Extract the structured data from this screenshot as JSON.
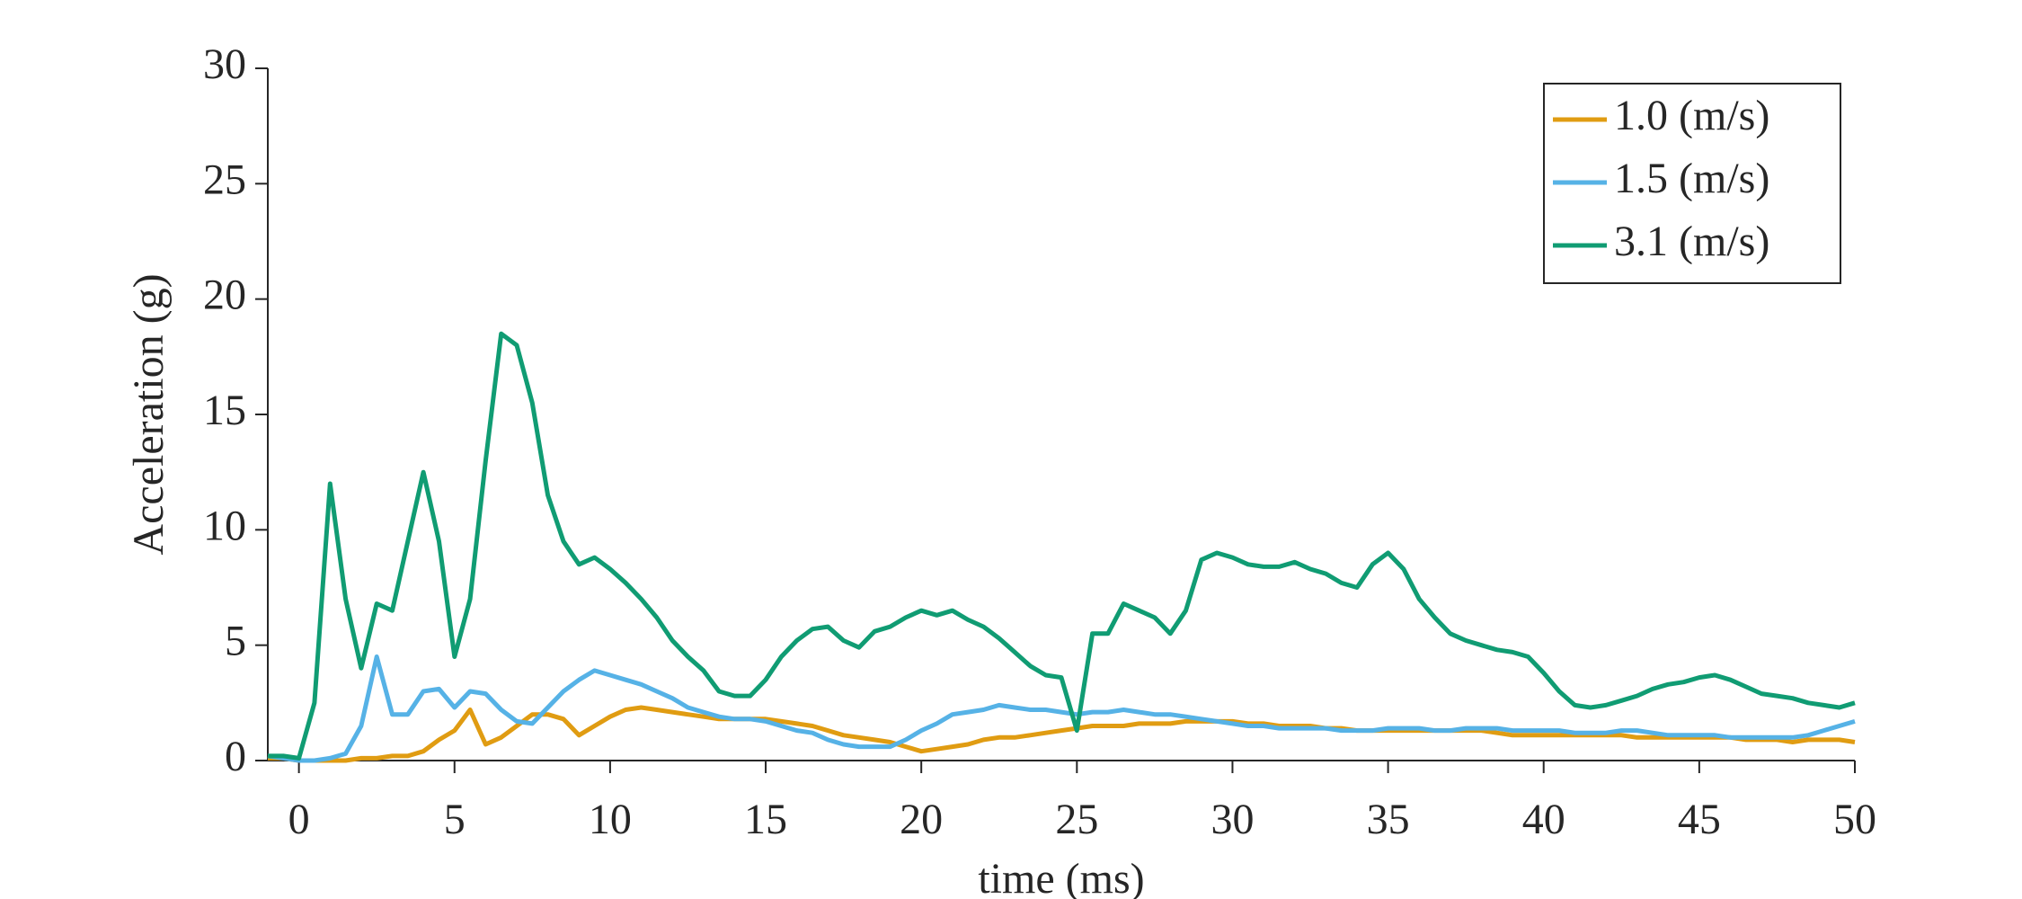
{
  "chart_data": {
    "type": "line",
    "xlabel": "time (ms)",
    "ylabel": "Acceleration (g)",
    "xlim": [
      -1,
      50
    ],
    "ylim": [
      0,
      30
    ],
    "xticks": [
      0,
      5,
      10,
      15,
      20,
      25,
      30,
      35,
      40,
      45,
      50
    ],
    "yticks": [
      0,
      5,
      10,
      15,
      20,
      25,
      30
    ],
    "legend": "northeast",
    "x": [
      -1,
      -0.5,
      0,
      0.5,
      1,
      1.5,
      2,
      2.5,
      3,
      3.5,
      4,
      4.5,
      5,
      5.5,
      6,
      6.5,
      7,
      7.5,
      8,
      8.5,
      9,
      9.5,
      10,
      10.5,
      11,
      11.5,
      12,
      12.5,
      13,
      13.5,
      14,
      14.5,
      15,
      15.5,
      16,
      16.5,
      17,
      17.5,
      18,
      18.5,
      19,
      19.5,
      20,
      20.5,
      21,
      21.5,
      22,
      22.5,
      23,
      23.5,
      24,
      24.5,
      25,
      25.5,
      26,
      26.5,
      27,
      27.5,
      28,
      28.5,
      29,
      29.5,
      30,
      30.5,
      31,
      31.5,
      32,
      32.5,
      33,
      33.5,
      34,
      34.5,
      35,
      35.5,
      36,
      36.5,
      37,
      37.5,
      38,
      38.5,
      39,
      39.5,
      40,
      40.5,
      41,
      41.5,
      42,
      42.5,
      43,
      43.5,
      44,
      44.5,
      45,
      45.5,
      46,
      46.5,
      47,
      47.5,
      48,
      48.5,
      49,
      49.5,
      50
    ],
    "series": [
      {
        "name": "1.0 (m/s)",
        "color": "#e09c12",
        "values": [
          0.1,
          0.1,
          0,
          0,
          0,
          0,
          0.1,
          0.1,
          0.2,
          0.2,
          0.4,
          0.9,
          1.3,
          2.2,
          0.7,
          1,
          1.5,
          2,
          2,
          1.8,
          1.1,
          1.5,
          1.9,
          2.2,
          2.3,
          2.2,
          2.1,
          2,
          1.9,
          1.8,
          1.8,
          1.8,
          1.8,
          1.7,
          1.6,
          1.5,
          1.3,
          1.1,
          1,
          0.9,
          0.8,
          0.6,
          0.4,
          0.5,
          0.6,
          0.7,
          0.9,
          1,
          1,
          1.1,
          1.2,
          1.3,
          1.4,
          1.5,
          1.5,
          1.5,
          1.6,
          1.6,
          1.6,
          1.7,
          1.7,
          1.7,
          1.7,
          1.6,
          1.6,
          1.5,
          1.5,
          1.5,
          1.4,
          1.4,
          1.3,
          1.3,
          1.3,
          1.3,
          1.3,
          1.3,
          1.3,
          1.3,
          1.3,
          1.2,
          1.1,
          1.1,
          1.1,
          1.1,
          1.1,
          1.1,
          1.1,
          1.1,
          1,
          1,
          1,
          1,
          1,
          1,
          1,
          0.9,
          0.9,
          0.9,
          0.8,
          0.9,
          0.9,
          0.9,
          0.8
        ]
      },
      {
        "name": "1.5 (m/s)",
        "color": "#56b2e6",
        "values": [
          0.2,
          0.1,
          0,
          0,
          0.1,
          0.3,
          1.5,
          4.5,
          2,
          2,
          3,
          3.1,
          2.3,
          3,
          2.9,
          2.2,
          1.7,
          1.6,
          2.3,
          3,
          3.5,
          3.9,
          3.7,
          3.5,
          3.3,
          3,
          2.7,
          2.3,
          2.1,
          1.9,
          1.8,
          1.8,
          1.7,
          1.5,
          1.3,
          1.2,
          0.9,
          0.7,
          0.6,
          0.6,
          0.6,
          0.9,
          1.3,
          1.6,
          2,
          2.1,
          2.2,
          2.4,
          2.3,
          2.2,
          2.2,
          2.1,
          2,
          2.1,
          2.1,
          2.2,
          2.1,
          2,
          2,
          1.9,
          1.8,
          1.7,
          1.6,
          1.5,
          1.5,
          1.4,
          1.4,
          1.4,
          1.4,
          1.3,
          1.3,
          1.3,
          1.4,
          1.4,
          1.4,
          1.3,
          1.3,
          1.4,
          1.4,
          1.4,
          1.3,
          1.3,
          1.3,
          1.3,
          1.2,
          1.2,
          1.2,
          1.3,
          1.3,
          1.2,
          1.1,
          1.1,
          1.1,
          1.1,
          1,
          1,
          1,
          1,
          1,
          1.1,
          1.3,
          1.5,
          1.7
        ]
      },
      {
        "name": "3.1 (m/s)",
        "color": "#109c73",
        "values": [
          0.2,
          0.2,
          0.1,
          2.5,
          12,
          7,
          4,
          6.8,
          6.5,
          9.5,
          12.5,
          9.5,
          4.5,
          7,
          13,
          18.5,
          18,
          15.5,
          11.5,
          9.5,
          8.5,
          8.8,
          8.3,
          7.7,
          7,
          6.2,
          5.2,
          4.5,
          3.9,
          3,
          2.8,
          2.8,
          3.5,
          4.5,
          5.2,
          5.7,
          5.8,
          5.2,
          4.9,
          5.6,
          5.8,
          6.2,
          6.5,
          6.3,
          6.5,
          6.1,
          5.8,
          5.3,
          4.7,
          4.1,
          3.7,
          3.6,
          1.3,
          5.5,
          5.5,
          6.8,
          6.5,
          6.2,
          5.5,
          6.5,
          8.7,
          9,
          8.8,
          8.5,
          8.4,
          8.4,
          8.6,
          8.3,
          8.1,
          7.7,
          7.5,
          8.5,
          9,
          8.3,
          7,
          6.2,
          5.5,
          5.2,
          5,
          4.8,
          4.7,
          4.5,
          3.8,
          3,
          2.4,
          2.3,
          2.4,
          2.6,
          2.8,
          3.1,
          3.3,
          3.4,
          3.6,
          3.7,
          3.5,
          3.2,
          2.9,
          2.8,
          2.7,
          2.5,
          2.4,
          2.3,
          2.5
        ]
      }
    ]
  }
}
